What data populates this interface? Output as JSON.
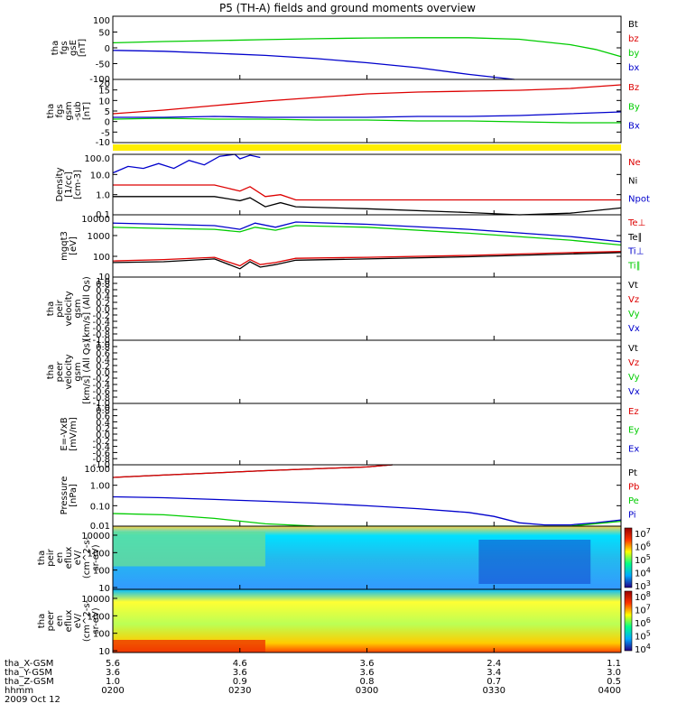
{
  "title": "P5 (TH-A) fields and ground moments overview",
  "date": "2009 Oct 12",
  "ephemeris": {
    "labels": [
      "tha_X-GSM",
      "tha_Y-GSM",
      "tha_Z-GSM",
      "hhmm"
    ],
    "columns": [
      [
        "5.6",
        "3.6",
        "1.0",
        "0200"
      ],
      [
        "4.6",
        "3.6",
        "0.9",
        "0230"
      ],
      [
        "3.6",
        "3.6",
        "0.8",
        "0300"
      ],
      [
        "2.4",
        "3.4",
        "0.7",
        "0330"
      ],
      [
        "1.1",
        "3.0",
        "0.5",
        "0400"
      ]
    ]
  },
  "colors": {
    "black": "#000000",
    "red": "#dd0000",
    "green": "#00cc00",
    "blue": "#0000cc",
    "yellow": "#ffee00"
  },
  "chart_data": [
    {
      "type": "line",
      "panel": "fgs_gse",
      "ylabel": [
        "tha",
        "fgs",
        "gsE",
        "[nT]"
      ],
      "ylim": [
        -100,
        100
      ],
      "ticks": [
        "100",
        "50",
        "0",
        "-50",
        "-100"
      ],
      "legend": [
        {
          "name": "Bt",
          "color": "#000000"
        },
        {
          "name": "bz",
          "color": "#dd0000"
        },
        {
          "name": "by",
          "color": "#00cc00"
        },
        {
          "name": "bx",
          "color": "#0000cc"
        }
      ],
      "series": [
        {
          "name": "by",
          "color": "#00cc00",
          "x": [
            0,
            0.1,
            0.2,
            0.3,
            0.4,
            0.5,
            0.6,
            0.7,
            0.8,
            0.9,
            0.95,
            1.0
          ],
          "y": [
            16,
            20,
            23,
            26,
            29,
            31,
            32,
            32,
            27,
            10,
            -5,
            -28
          ]
        },
        {
          "name": "bx",
          "color": "#0000cc",
          "x": [
            0,
            0.1,
            0.2,
            0.3,
            0.4,
            0.5,
            0.6,
            0.7,
            0.79
          ],
          "y": [
            -8,
            -11,
            -17,
            -24,
            -34,
            -47,
            -63,
            -84,
            -100
          ]
        }
      ]
    },
    {
      "type": "line",
      "panel": "fgs_gsm",
      "ylabel": [
        "tha",
        "fgs",
        "gsm",
        "-sub",
        "[nT]"
      ],
      "ylim": [
        -15,
        20
      ],
      "ticks": [
        "20",
        "15",
        "10",
        "5",
        "0",
        "-5",
        "-10"
      ],
      "legend": [
        {
          "name": "Bz",
          "color": "#dd0000"
        },
        {
          "name": "By",
          "color": "#00cc00"
        },
        {
          "name": "Bx",
          "color": "#0000cc"
        }
      ],
      "series": [
        {
          "name": "Bz",
          "color": "#dd0000",
          "x": [
            0,
            0.1,
            0.2,
            0.3,
            0.4,
            0.5,
            0.6,
            0.7,
            0.8,
            0.9,
            1.0
          ],
          "y": [
            1,
            3,
            5.5,
            8,
            10,
            12,
            13,
            13.5,
            14,
            15,
            17
          ]
        },
        {
          "name": "By",
          "color": "#00cc00",
          "x": [
            0,
            0.1,
            0.2,
            0.3,
            0.4,
            0.5,
            0.6,
            0.7,
            0.8,
            0.9,
            1.0
          ],
          "y": [
            -2,
            -1.5,
            -2,
            -2,
            -2.5,
            -2.5,
            -3,
            -3,
            -3.5,
            -4,
            -4
          ]
        },
        {
          "name": "Bx",
          "color": "#0000cc",
          "x": [
            0,
            0.1,
            0.2,
            0.3,
            0.4,
            0.5,
            0.6,
            0.7,
            0.8,
            0.9,
            1.0
          ],
          "y": [
            -1,
            -1,
            -0.5,
            -1,
            -1,
            -1,
            -0.5,
            -0.5,
            0,
            1,
            2
          ]
        }
      ]
    },
    {
      "type": "line",
      "panel": "density",
      "scale": "log",
      "ylabel": [
        "Density",
        "[1/cc]",
        "[cm-3]"
      ],
      "ylim": [
        0.1,
        100
      ],
      "ticks": [
        "100.0",
        "10.0",
        "1.0",
        "0.1"
      ],
      "legend": [
        {
          "name": "Ne",
          "color": "#dd0000"
        },
        {
          "name": "Ni",
          "color": "#000000"
        },
        {
          "name": "Npot",
          "color": "#0000cc"
        }
      ],
      "series": [
        {
          "name": "Ne",
          "color": "#dd0000",
          "x": [
            0,
            0.1,
            0.2,
            0.25,
            0.27,
            0.3,
            0.33,
            0.36,
            0.5,
            0.7,
            0.9,
            1.0
          ],
          "y": [
            3,
            3,
            3,
            1.5,
            2.5,
            0.8,
            1.0,
            0.55,
            0.55,
            0.55,
            0.55,
            0.55
          ]
        },
        {
          "name": "Ni",
          "color": "#000000",
          "x": [
            0,
            0.1,
            0.2,
            0.25,
            0.27,
            0.3,
            0.33,
            0.36,
            0.5,
            0.7,
            0.8,
            0.9,
            1.0
          ],
          "y": [
            0.8,
            0.8,
            0.8,
            0.5,
            0.7,
            0.25,
            0.4,
            0.25,
            0.2,
            0.13,
            0.09,
            0.12,
            0.22
          ]
        },
        {
          "name": "Npot",
          "color": "#0000cc",
          "x": [
            0,
            0.03,
            0.06,
            0.09,
            0.12,
            0.15,
            0.18,
            0.21,
            0.24,
            0.25,
            0.27,
            0.29
          ],
          "y": [
            12,
            25,
            20,
            35,
            20,
            50,
            30,
            80,
            100,
            60,
            90,
            70
          ]
        }
      ]
    },
    {
      "type": "line",
      "panel": "temperature",
      "scale": "log",
      "ylabel": [
        "mgqt3",
        "[eV]"
      ],
      "ylim": [
        10,
        10000
      ],
      "ticks": [
        "10000",
        "1000",
        "100",
        "10"
      ],
      "legend": [
        {
          "name": "Te⊥",
          "color": "#dd0000"
        },
        {
          "name": "Te∥",
          "color": "#000000"
        },
        {
          "name": "Ti⊥",
          "color": "#0000cc"
        },
        {
          "name": "Ti∥",
          "color": "#00cc00"
        }
      ],
      "series": [
        {
          "name": "Ti⊥",
          "color": "#0000cc",
          "x": [
            0,
            0.1,
            0.2,
            0.25,
            0.28,
            0.32,
            0.36,
            0.5,
            0.7,
            0.9,
            1.0
          ],
          "y": [
            4000,
            3500,
            3000,
            2000,
            4000,
            2500,
            4500,
            3500,
            2000,
            900,
            500
          ]
        },
        {
          "name": "Ti∥",
          "color": "#00cc00",
          "x": [
            0,
            0.1,
            0.2,
            0.25,
            0.28,
            0.32,
            0.36,
            0.5,
            0.7,
            0.9,
            1.0
          ],
          "y": [
            2500,
            2200,
            2000,
            1500,
            2500,
            1800,
            3000,
            2500,
            1300,
            600,
            350
          ]
        },
        {
          "name": "Te⊥",
          "color": "#dd0000",
          "x": [
            0,
            0.1,
            0.2,
            0.25,
            0.27,
            0.29,
            0.32,
            0.36,
            0.5,
            0.7,
            0.9,
            1.0
          ],
          "y": [
            60,
            70,
            90,
            35,
            70,
            40,
            50,
            80,
            90,
            110,
            150,
            170
          ]
        },
        {
          "name": "Te∥",
          "color": "#000000",
          "x": [
            0,
            0.1,
            0.2,
            0.25,
            0.27,
            0.29,
            0.32,
            0.36,
            0.5,
            0.7,
            0.9,
            1.0
          ],
          "y": [
            50,
            55,
            75,
            25,
            55,
            30,
            40,
            65,
            75,
            95,
            130,
            150
          ]
        }
      ]
    },
    {
      "type": "line",
      "panel": "peir_velocity",
      "ylabel": [
        "tha",
        "peir",
        "velocity",
        "gsm",
        "[km/s] (All Qs)"
      ],
      "ylim": [
        -1,
        1
      ],
      "ticks": [
        "1.0",
        "0.8",
        "0.6",
        "0.4",
        "0.2",
        "0.0",
        "-0.2",
        "-0.4",
        "-0.6",
        "-0.8",
        "-1.0"
      ],
      "legend": [
        {
          "name": "Vt",
          "color": "#000000"
        },
        {
          "name": "Vz",
          "color": "#dd0000"
        },
        {
          "name": "Vy",
          "color": "#00cc00"
        },
        {
          "name": "Vx",
          "color": "#0000cc"
        }
      ],
      "series": []
    },
    {
      "type": "line",
      "panel": "peer_velocity",
      "ylabel": [
        "tha",
        "peer",
        "velocity",
        "gsm",
        "[km/s] (All Qs)"
      ],
      "ylim": [
        -1,
        1
      ],
      "ticks": [
        "1.0",
        "0.8",
        "0.6",
        "0.4",
        "0.2",
        "0.0",
        "-0.2",
        "-0.4",
        "-0.6",
        "-0.8",
        "-1.0"
      ],
      "legend": [
        {
          "name": "Vt",
          "color": "#000000"
        },
        {
          "name": "Vz",
          "color": "#dd0000"
        },
        {
          "name": "Vy",
          "color": "#00cc00"
        },
        {
          "name": "Vx",
          "color": "#0000cc"
        }
      ],
      "series": []
    },
    {
      "type": "line",
      "panel": "efield",
      "ylabel": [
        "E=-VxB",
        "[mV/m]"
      ],
      "ylim": [
        -1,
        1
      ],
      "ticks": [
        "1.0",
        "0.8",
        "0.6",
        "0.4",
        "0.2",
        "0.0",
        "-0.2",
        "-0.4",
        "-0.6",
        "-0.8",
        "-1.0"
      ],
      "legend": [
        {
          "name": "Ez",
          "color": "#dd0000"
        },
        {
          "name": "Ey",
          "color": "#00cc00"
        },
        {
          "name": "Ex",
          "color": "#0000cc"
        }
      ],
      "series": []
    },
    {
      "type": "line",
      "panel": "pressure",
      "scale": "log",
      "ylabel": [
        "Pressure",
        "[nPa]"
      ],
      "ylim": [
        0.005,
        30
      ],
      "ticks": [
        "10.00",
        "1.00",
        "0.10",
        "0.01"
      ],
      "legend": [
        {
          "name": "Pt",
          "color": "#000000"
        },
        {
          "name": "Pb",
          "color": "#dd0000"
        },
        {
          "name": "Pe",
          "color": "#00cc00"
        },
        {
          "name": "Pi",
          "color": "#0000cc"
        }
      ],
      "series": [
        {
          "name": "Pt",
          "color": "#000000",
          "x": [
            0,
            0.1,
            0.2,
            0.3,
            0.4,
            0.5,
            0.55
          ],
          "y": [
            5,
            7,
            9.5,
            13,
            17,
            22,
            30
          ]
        },
        {
          "name": "Pb",
          "color": "#dd0000",
          "x": [
            0,
            0.1,
            0.2,
            0.3,
            0.4,
            0.5,
            0.55
          ],
          "y": [
            5,
            7,
            9.5,
            13,
            17,
            22,
            30
          ]
        },
        {
          "name": "Pi",
          "color": "#0000cc",
          "x": [
            0,
            0.1,
            0.2,
            0.3,
            0.4,
            0.5,
            0.6,
            0.7,
            0.75,
            0.8,
            0.85,
            0.9,
            0.95,
            1.0
          ],
          "y": [
            0.32,
            0.28,
            0.22,
            0.17,
            0.13,
            0.09,
            0.06,
            0.035,
            0.02,
            0.008,
            0.006,
            0.006,
            0.008,
            0.012
          ]
        },
        {
          "name": "Pe",
          "color": "#00cc00",
          "x": [
            0,
            0.1,
            0.2,
            0.3,
            0.4,
            0.5,
            0.6,
            0.7,
            0.8,
            0.9,
            1.0
          ],
          "y": [
            0.03,
            0.025,
            0.015,
            0.007,
            0.004,
            0.004,
            0.004,
            0.004,
            0.004,
            0.005,
            0.01
          ]
        }
      ]
    },
    {
      "type": "heatmap",
      "panel": "peir_eflux",
      "ylabel": [
        "tha",
        "peir",
        "en",
        "eflux",
        "eV/",
        "(cm^2-s-",
        "sr-eV)"
      ],
      "yticks": [
        "10000",
        "1000",
        "100",
        "10"
      ],
      "colorbar": [
        "10^7",
        "10^6",
        "10^5",
        "10^4",
        "10^3"
      ]
    },
    {
      "type": "heatmap",
      "panel": "peer_eflux",
      "ylabel": [
        "tha",
        "peer",
        "en",
        "eflux",
        "eV/",
        "(cm^2-s-",
        "sr-eV)"
      ],
      "yticks": [
        "10000",
        "1000",
        "100",
        "10"
      ],
      "colorbar": [
        "10^8",
        "10^7",
        "10^6",
        "10^5",
        "10^4"
      ]
    }
  ]
}
